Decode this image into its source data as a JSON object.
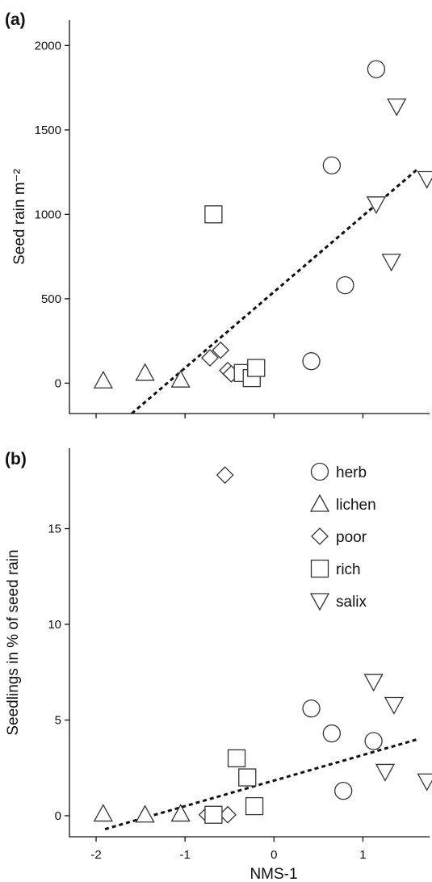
{
  "chart_data": [
    {
      "type": "scatter",
      "panel_label": "(a)",
      "title": "",
      "xlabel": "",
      "ylabel": "Seed rain m⁻²",
      "xlim": [
        -2.3,
        1.75
      ],
      "ylim": [
        -180,
        2150
      ],
      "yticks": [
        0,
        500,
        1000,
        1500,
        2000
      ],
      "series": [
        {
          "name": "herb",
          "marker": "circle",
          "points": [
            [
              1.15,
              1860
            ],
            [
              0.65,
              1290
            ],
            [
              0.8,
              580
            ],
            [
              0.42,
              130
            ]
          ]
        },
        {
          "name": "lichen",
          "marker": "triangle-up",
          "points": [
            [
              -1.92,
              15
            ],
            [
              -1.45,
              60
            ],
            [
              -1.05,
              20
            ]
          ]
        },
        {
          "name": "poor",
          "marker": "diamond",
          "points": [
            [
              -0.72,
              150
            ],
            [
              -0.6,
              195
            ],
            [
              -0.52,
              75
            ],
            [
              -0.48,
              55
            ]
          ]
        },
        {
          "name": "rich",
          "marker": "square",
          "points": [
            [
              -0.68,
              1000
            ],
            [
              -0.35,
              60
            ],
            [
              -0.25,
              30
            ],
            [
              -0.2,
              90
            ]
          ]
        },
        {
          "name": "salix",
          "marker": "triangle-down",
          "points": [
            [
              1.38,
              1640
            ],
            [
              1.72,
              1210
            ],
            [
              1.15,
              1060
            ],
            [
              1.32,
              720
            ]
          ]
        }
      ],
      "fit_line": {
        "x": [
          -1.6,
          1.62
        ],
        "y": [
          -180,
          1270
        ]
      }
    },
    {
      "type": "scatter",
      "panel_label": "(b)",
      "title": "",
      "xlabel": "NMS-1",
      "ylabel": "Seedlings in % of seed rain",
      "xlim": [
        -2.3,
        1.75
      ],
      "ylim": [
        -1.1,
        19.2
      ],
      "xticks": [
        -2,
        -1,
        0,
        1
      ],
      "yticks": [
        0,
        5,
        10,
        15
      ],
      "series": [
        {
          "name": "herb",
          "marker": "circle",
          "points": [
            [
              0.42,
              5.6
            ],
            [
              0.65,
              4.3
            ],
            [
              1.12,
              3.9
            ],
            [
              0.78,
              1.3
            ]
          ]
        },
        {
          "name": "lichen",
          "marker": "triangle-up",
          "points": [
            [
              -1.92,
              0.1
            ],
            [
              -1.45,
              0.05
            ],
            [
              -1.05,
              0.1
            ]
          ]
        },
        {
          "name": "poor",
          "marker": "diamond",
          "points": [
            [
              -0.55,
              17.8
            ],
            [
              -0.75,
              0.05
            ],
            [
              -0.68,
              0.05
            ],
            [
              -0.52,
              0.05
            ]
          ]
        },
        {
          "name": "rich",
          "marker": "square",
          "points": [
            [
              -0.68,
              0.05
            ],
            [
              -0.42,
              3.0
            ],
            [
              -0.3,
              2.0
            ],
            [
              -0.22,
              0.5
            ]
          ]
        },
        {
          "name": "salix",
          "marker": "triangle-down",
          "points": [
            [
              1.12,
              7.0
            ],
            [
              1.35,
              5.8
            ],
            [
              1.25,
              2.3
            ],
            [
              1.72,
              1.8
            ]
          ]
        }
      ],
      "fit_line": {
        "x": [
          -1.9,
          1.62
        ],
        "y": [
          -0.7,
          4.0
        ]
      },
      "legend": {
        "placement": "top-right",
        "entries": [
          {
            "label": "herb",
            "marker": "circle"
          },
          {
            "label": "lichen",
            "marker": "triangle-up"
          },
          {
            "label": "poor",
            "marker": "diamond"
          },
          {
            "label": "rich",
            "marker": "square"
          },
          {
            "label": "salix",
            "marker": "triangle-down"
          }
        ]
      }
    }
  ]
}
